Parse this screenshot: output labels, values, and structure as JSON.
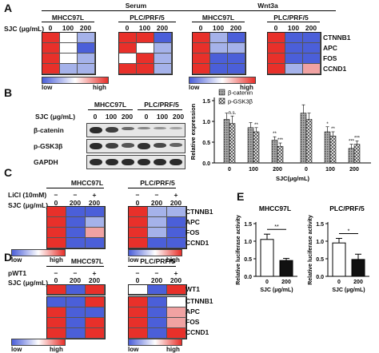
{
  "panels": {
    "A": "A",
    "B": "B",
    "C": "C",
    "D": "D",
    "E": "E"
  },
  "colors": {
    "red": "#e8302a",
    "lred": "#f0a2a2",
    "white": "#ffffff",
    "lblue": "#a5b2ea",
    "blue": "#4b5fd9"
  },
  "panelA": {
    "conditions": [
      "Serum",
      "Wnt3a"
    ],
    "cell_lines": [
      "MHCC97L",
      "PLC/PRF/5",
      "MHCC97L",
      "PLC/PRF/5"
    ],
    "sjc_label": "SJC (μg/mL)",
    "doses": [
      "0",
      "100",
      "200"
    ],
    "genes": [
      "CTNNB1",
      "APC",
      "FOS",
      "CCND1"
    ],
    "heatmaps": [
      [
        [
          "R",
          "W",
          "LB"
        ],
        [
          "R",
          "W",
          "B"
        ],
        [
          "R",
          "W",
          "LB"
        ],
        [
          "R",
          "LB",
          "LB"
        ]
      ],
      [
        [
          "R",
          "R",
          "B"
        ],
        [
          "R",
          "W",
          "LB"
        ],
        [
          "W",
          "R",
          "LB"
        ],
        [
          "R",
          "R",
          "LB"
        ]
      ],
      [
        [
          "R",
          "LB",
          "B"
        ],
        [
          "R",
          "LB",
          "LB"
        ],
        [
          "R",
          "B",
          "B"
        ],
        [
          "R",
          "B",
          "B"
        ]
      ],
      [
        [
          "R",
          "B",
          "B"
        ],
        [
          "R",
          "B",
          "B"
        ],
        [
          "R",
          "B",
          "B"
        ],
        [
          "R",
          "LB",
          "LR"
        ]
      ]
    ],
    "legend_low": "low",
    "legend_high": "high"
  },
  "panelB": {
    "cell_lines": [
      "MHCC97L",
      "PLC/PRF/5"
    ],
    "sjc_label": "SJC (μg/mL)",
    "doses": [
      "0",
      "100",
      "200",
      "0",
      "100",
      "200"
    ],
    "blot_rows": [
      "β-catenin",
      "p-GSK3β",
      "GAPDH"
    ],
    "band_intensity": [
      [
        1.0,
        0.85,
        0.55,
        0.35,
        0.25,
        0.15
      ],
      [
        1.0,
        0.85,
        0.7,
        0.95,
        0.8,
        0.6
      ],
      [
        1.0,
        1.0,
        1.0,
        1.0,
        1.0,
        1.0
      ]
    ]
  },
  "chart_data": {
    "type": "bar",
    "categories": [
      "0",
      "100",
      "200",
      "0",
      "100",
      "200"
    ],
    "series": [
      {
        "name": "β-catenin",
        "values": [
          1.05,
          0.85,
          0.55,
          1.2,
          0.75,
          0.35
        ],
        "errors": [
          0.15,
          0.12,
          0.08,
          0.2,
          0.12,
          0.1
        ]
      },
      {
        "name": "p-GSK3β",
        "values": [
          0.95,
          0.75,
          0.4,
          1.05,
          0.65,
          0.45
        ],
        "errors": [
          0.18,
          0.1,
          0.08,
          0.15,
          0.1,
          0.08
        ]
      }
    ],
    "significance": [
      [
        "",
        "n.s."
      ],
      [
        "",
        "**"
      ],
      [
        "**",
        "***"
      ],
      [
        "",
        ""
      ],
      [
        "*",
        "**"
      ],
      [
        "***",
        "***"
      ]
    ],
    "ylabel": "Relative expression",
    "xlabel": "SJC(μg/mL)",
    "ylim": [
      0,
      1.5
    ],
    "yticks": [
      "0.0",
      "0.5",
      "1.0",
      "1.5"
    ]
  },
  "panelC": {
    "licl_label": "LiCl (10mM)",
    "sjc_label": "SJC (μg/mL)",
    "cell_lines": [
      "MHCC97L",
      "PLC/PRF/5"
    ],
    "licl": [
      "−",
      "−",
      "+"
    ],
    "doses": [
      "0",
      "200",
      "200"
    ],
    "genes": [
      "CTNNB1",
      "APC",
      "FOS",
      "CCND1"
    ],
    "heatmaps": [
      [
        [
          "R",
          "B",
          "B"
        ],
        [
          "R",
          "B",
          "LB"
        ],
        [
          "R",
          "B",
          "LR"
        ],
        [
          "R",
          "B",
          "B"
        ]
      ],
      [
        [
          "R",
          "LB",
          "LB"
        ],
        [
          "R",
          "LB",
          "B"
        ],
        [
          "R",
          "LB",
          "B"
        ],
        [
          "R",
          "B",
          "B"
        ]
      ]
    ],
    "legend_low": "low",
    "legend_high": "high"
  },
  "panelD": {
    "pwt1_label": "pWT1",
    "sjc_label": "SJC (μg/mL)",
    "cell_lines": [
      "MHCC97L",
      "PLC/PRF/5"
    ],
    "pwt1": [
      "−",
      "−",
      "+"
    ],
    "doses": [
      "0",
      "200",
      "200"
    ],
    "wt1_gene": "WT1",
    "genes": [
      "CTNNB1",
      "APC",
      "FOS",
      "CCND1"
    ],
    "wt1_rows": [
      [
        "R",
        "B",
        "R"
      ],
      [
        "W",
        "B",
        "R"
      ]
    ],
    "heatmaps": [
      [
        [
          "B",
          "B",
          "R"
        ],
        [
          "R",
          "B",
          "B"
        ],
        [
          "R",
          "B",
          "R"
        ],
        [
          "R",
          "B",
          "R"
        ]
      ],
      [
        [
          "R",
          "B",
          "W"
        ],
        [
          "R",
          "B",
          "LR"
        ],
        [
          "R",
          "B",
          "LR"
        ],
        [
          "R",
          "B",
          "R"
        ]
      ]
    ],
    "legend_low": "low",
    "legend_high": "high"
  },
  "panelE": {
    "charts": [
      {
        "title": "MHCC97L",
        "values": [
          1.05,
          0.45
        ],
        "errors": [
          0.15,
          0.06
        ],
        "sig": "**"
      },
      {
        "title": "PLC/PRF/5",
        "values": [
          0.95,
          0.48
        ],
        "errors": [
          0.13,
          0.15
        ],
        "sig": "*"
      }
    ],
    "ylabel": "Relative luciferase activity",
    "xlabel": "SJC (μg/mL)",
    "categories": [
      "0",
      "200"
    ],
    "yticks": [
      "0.0",
      "0.5",
      "1.0",
      "1.5"
    ]
  }
}
